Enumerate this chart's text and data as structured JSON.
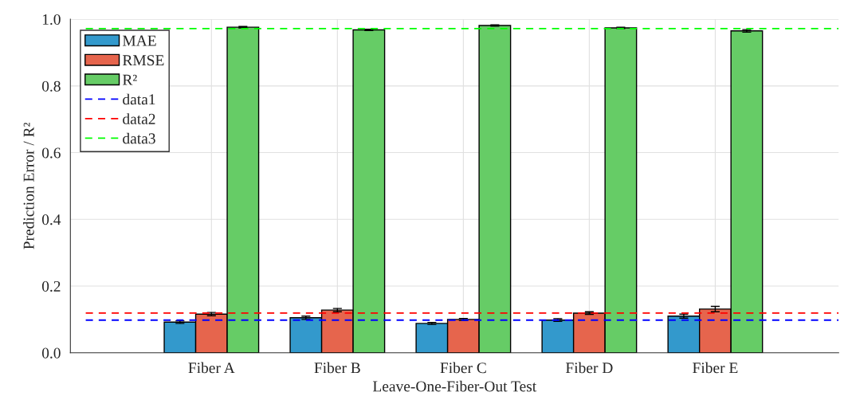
{
  "chart_data": {
    "type": "bar",
    "xlabel": "Leave-One-Fiber-Out Test",
    "ylabel": "Prediction Error / R²",
    "categories": [
      "Fiber A",
      "Fiber B",
      "Fiber C",
      "Fiber D",
      "Fiber E"
    ],
    "series": [
      {
        "name": "MAE",
        "color": "#3399cc",
        "values": [
          0.092,
          0.105,
          0.088,
          0.098,
          0.11
        ],
        "errors": [
          0.004,
          0.005,
          0.003,
          0.004,
          0.006
        ]
      },
      {
        "name": "RMSE",
        "color": "#e6654d",
        "values": [
          0.116,
          0.128,
          0.1,
          0.119,
          0.131
        ],
        "errors": [
          0.005,
          0.005,
          0.003,
          0.004,
          0.008
        ]
      },
      {
        "name": "R²",
        "color": "#66cc66",
        "values": [
          0.976,
          0.968,
          0.981,
          0.974,
          0.965
        ],
        "errors": [
          0.002,
          0.002,
          0.002,
          0.002,
          0.004
        ]
      }
    ],
    "ref_lines": [
      {
        "axis": "y",
        "value": 0.098,
        "label": "data1",
        "color": "#0000ff",
        "line_style": "dashed"
      },
      {
        "axis": "y",
        "value": 0.119,
        "label": "data2",
        "color": "#ff0000",
        "line_style": "dashed"
      },
      {
        "axis": "y",
        "value": 0.972,
        "label": "data3",
        "color": "#00ff00",
        "line_style": "dashed"
      }
    ],
    "ylim": [
      0,
      1
    ],
    "yticks": [
      {
        "value": 0,
        "label": "0.0"
      },
      0.2,
      0.4,
      0.6,
      0.8,
      {
        "value": 1,
        "label": "1.0"
      }
    ],
    "grid": true,
    "legend": "top left"
  }
}
